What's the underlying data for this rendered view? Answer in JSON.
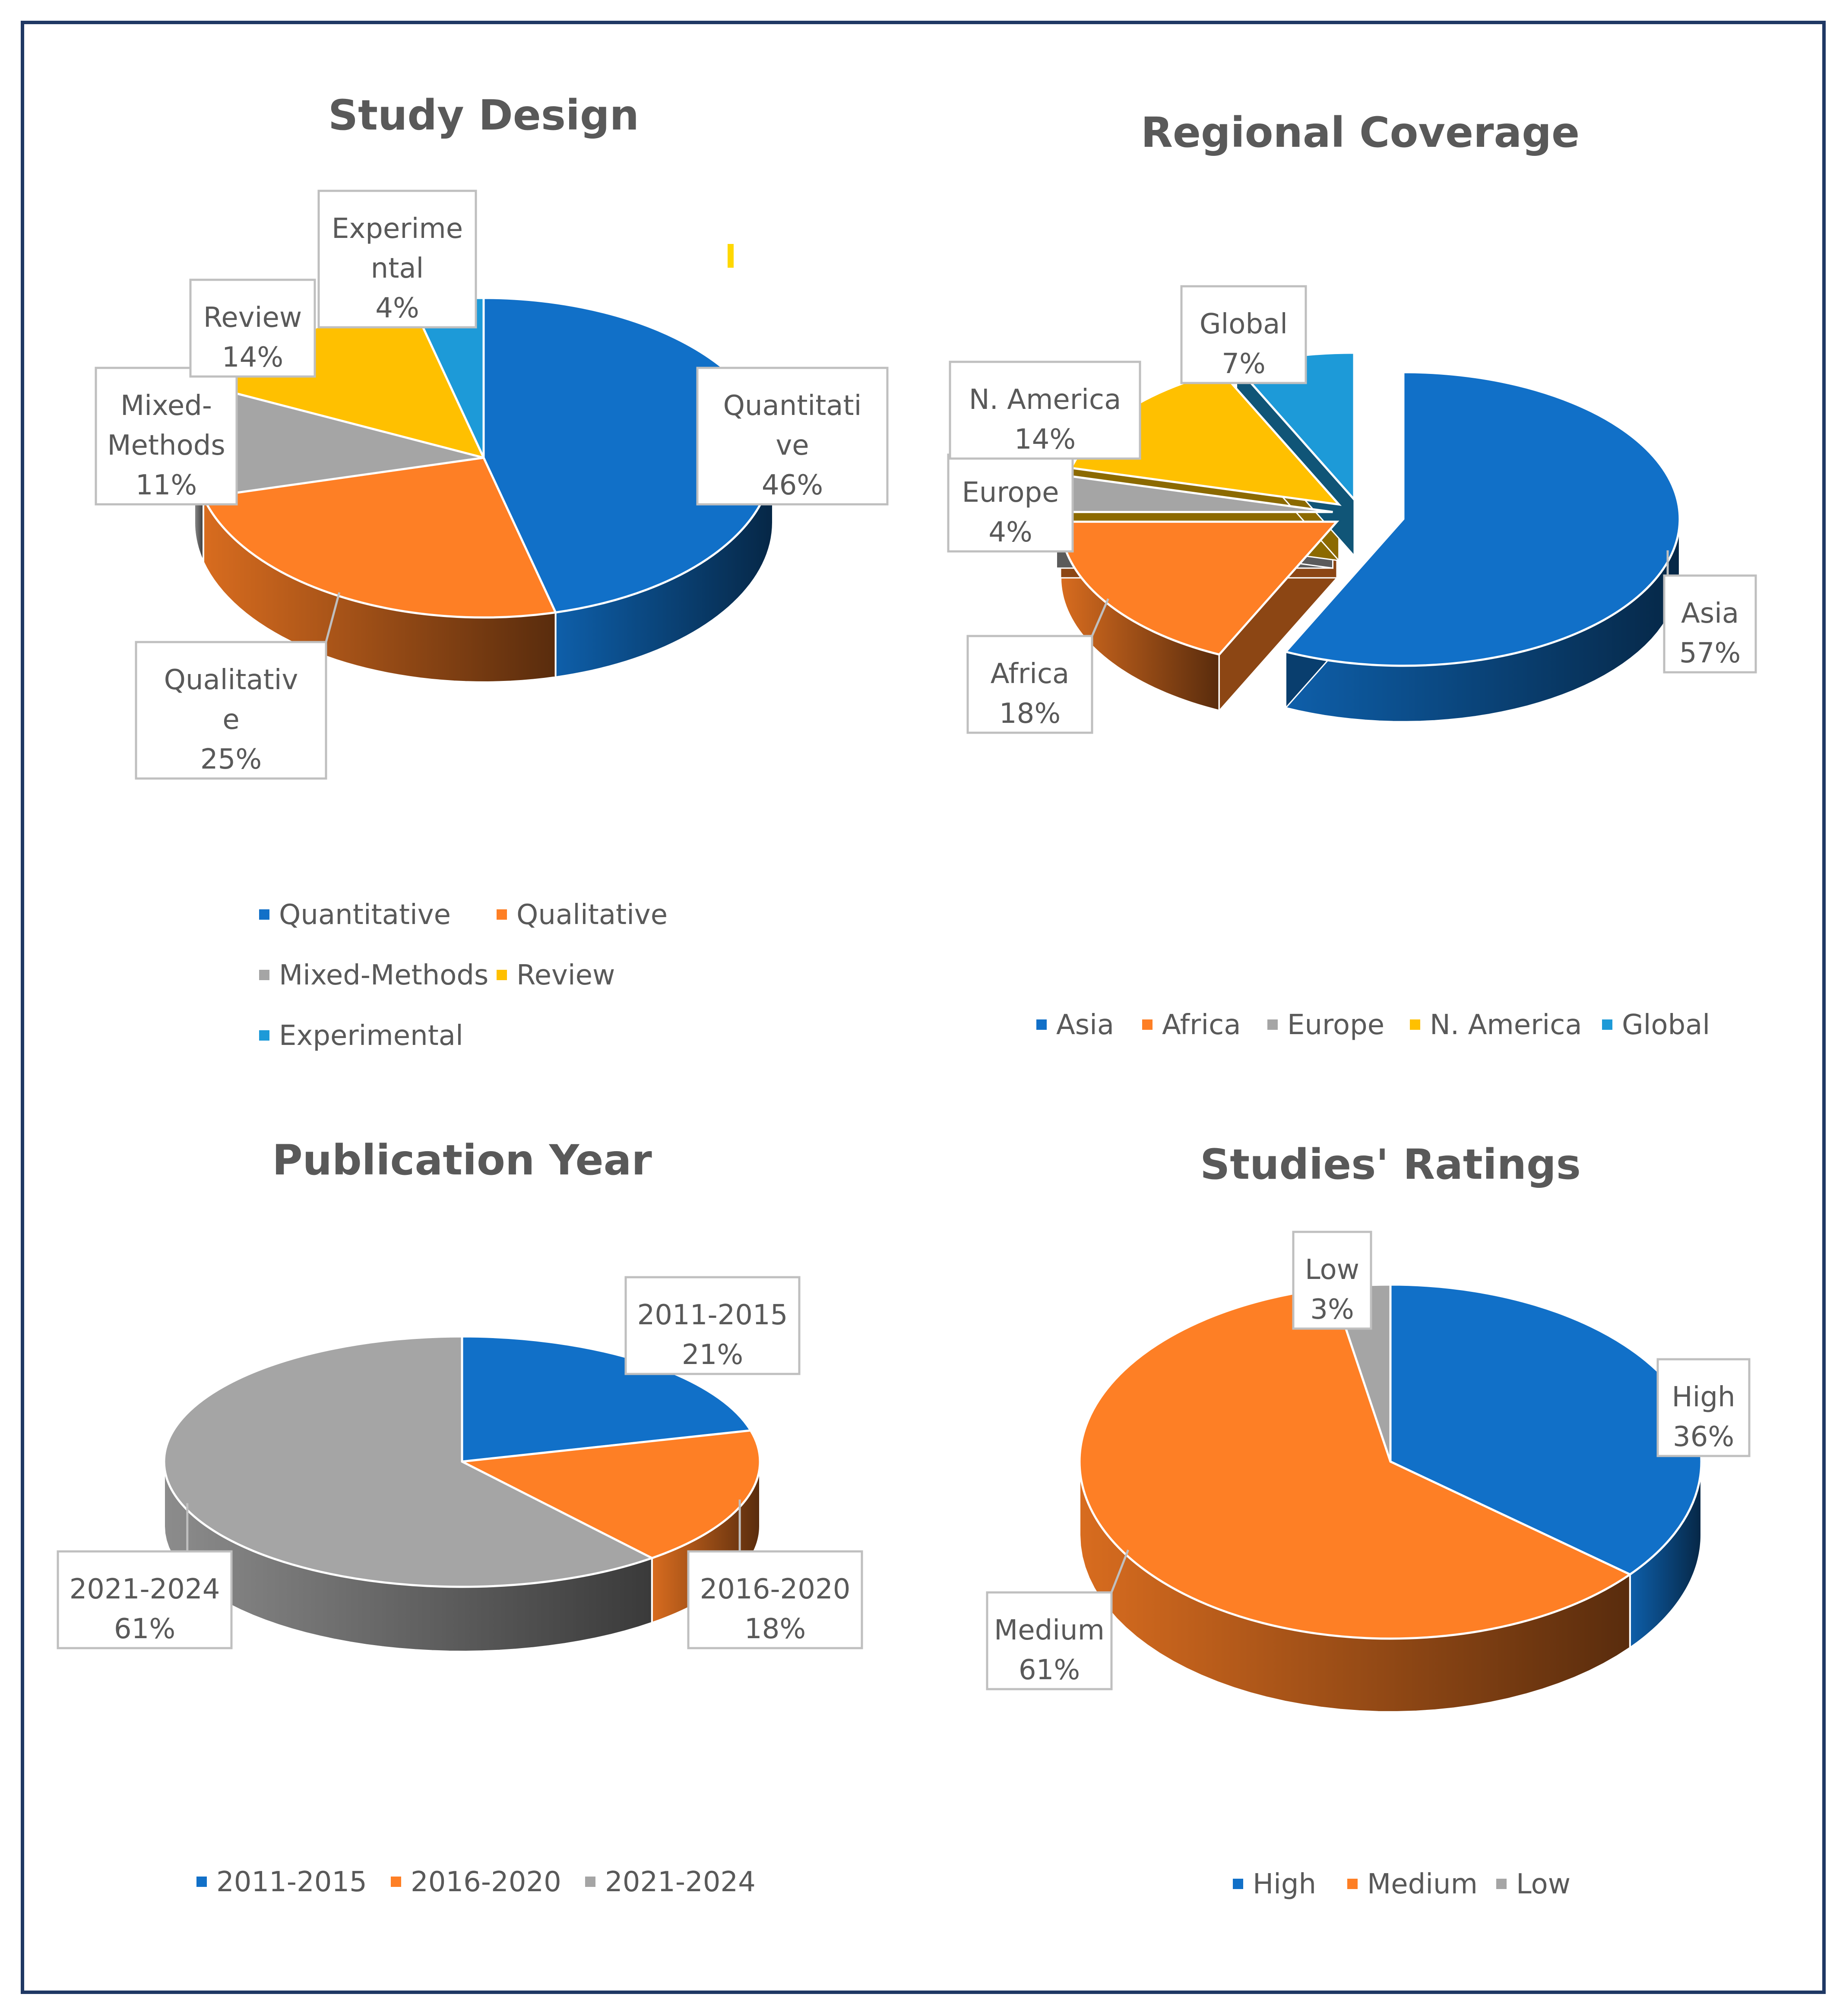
{
  "chart_data": [
    {
      "type": "pie",
      "title": "Study Design",
      "series": [
        {
          "name": "Quantitative",
          "label": [
            "Quantitati",
            "ve",
            "46%"
          ],
          "value": 46,
          "color": "#1170c8"
        },
        {
          "name": "Qualitative",
          "label": [
            "Qualitativ",
            "e",
            "25%"
          ],
          "value": 25,
          "color": "#fe7f25"
        },
        {
          "name": "Mixed-Methods",
          "label": [
            "Mixed-",
            "Methods",
            "11%"
          ],
          "value": 11,
          "color": "#a5a5a5"
        },
        {
          "name": "Review",
          "label": [
            "Review",
            "14%"
          ],
          "value": 14,
          "color": "#ffc000"
        },
        {
          "name": "Experimental",
          "label": [
            "Experime",
            "ntal",
            "4%"
          ],
          "value": 4,
          "color": "#1d9ad8"
        }
      ],
      "legend": [
        [
          "Quantitative",
          "Qualitative"
        ],
        [
          "Mixed-Methods",
          "Review"
        ],
        [
          "Experimental"
        ]
      ],
      "exploded": false
    },
    {
      "type": "pie",
      "title": "Regional Coverage",
      "series": [
        {
          "name": "Asia",
          "label": [
            "Asia",
            "57%"
          ],
          "value": 57,
          "color": "#1170c8"
        },
        {
          "name": "Africa",
          "label": [
            "Africa",
            "18%"
          ],
          "value": 18,
          "color": "#fe7f25"
        },
        {
          "name": "Europe",
          "label": [
            "Europe",
            "4%"
          ],
          "value": 4,
          "color": "#a5a5a5"
        },
        {
          "name": "N. America",
          "label": [
            "N. America",
            "14%"
          ],
          "value": 14,
          "color": "#ffc000"
        },
        {
          "name": "Global",
          "label": [
            "Global",
            "7%"
          ],
          "value": 7,
          "color": "#1d9ad8"
        }
      ],
      "legend": [
        [
          "Asia",
          "Africa",
          "Europe",
          "N. America",
          "Global"
        ]
      ],
      "exploded": true
    },
    {
      "type": "pie",
      "title": "Publication Year",
      "series": [
        {
          "name": "2011-2015",
          "label": [
            "2011-2015",
            "21%"
          ],
          "value": 21,
          "color": "#1170c8"
        },
        {
          "name": "2016-2020",
          "label": [
            "2016-2020",
            "18%"
          ],
          "value": 18,
          "color": "#fe7f25"
        },
        {
          "name": "2021-2024",
          "label": [
            "2021-2024",
            "61%"
          ],
          "value": 61,
          "color": "#a5a5a5"
        }
      ],
      "legend": [
        [
          "2011-2015",
          "2016-2020",
          "2021-2024"
        ]
      ],
      "exploded": false
    },
    {
      "type": "pie",
      "title": "Studies'  Ratings",
      "series": [
        {
          "name": "High",
          "label": [
            "High",
            "36%"
          ],
          "value": 36,
          "color": "#1170c8"
        },
        {
          "name": "Medium",
          "label": [
            "Medium",
            "61%"
          ],
          "value": 61,
          "color": "#fe7f25"
        },
        {
          "name": "Low",
          "label": [
            "Low",
            "3%"
          ],
          "value": 3,
          "color": "#a5a5a5"
        }
      ],
      "legend": [
        [
          "High",
          "Medium",
          "Low"
        ]
      ],
      "exploded": false
    }
  ]
}
